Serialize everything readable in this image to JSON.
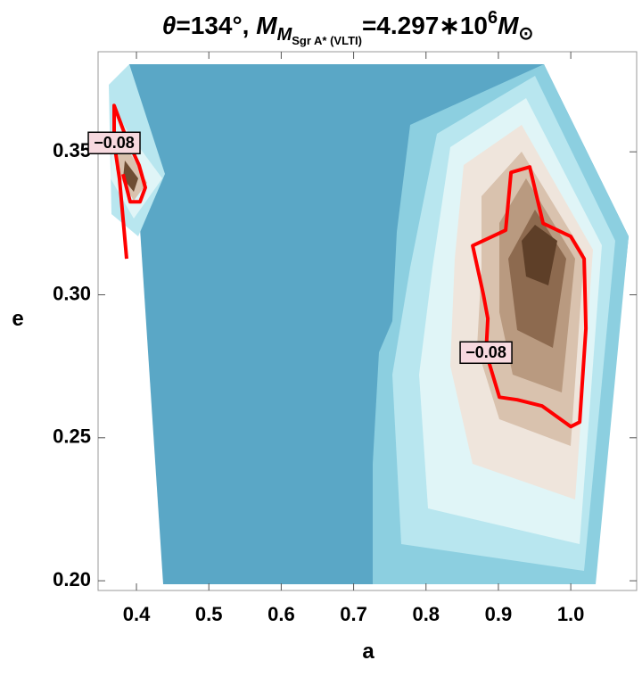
{
  "chart_data": {
    "type": "contour",
    "title": {
      "theta": "θ",
      "lead": "=134°, ",
      "m": "M",
      "sub": "M",
      "subsub": "Sgr A* (VLTI)",
      "eq": "=4.297∗10",
      "exp": "6",
      "msun": "M",
      "sun": "⊙"
    },
    "x_label": "a",
    "y_label": "e",
    "xlim": [
      0.347,
      1.091
    ],
    "ylim": [
      0.1966,
      0.385
    ],
    "xticks": [
      0.4,
      0.5,
      0.6,
      0.7,
      0.8,
      0.9,
      {
        "value": 1,
        "label": "1.0"
      }
    ],
    "yticks": [
      {
        "value": 0.2,
        "label": "0.20"
      },
      0.25,
      {
        "value": 0.3,
        "label": "0.30"
      },
      0.35
    ],
    "contours": [
      {
        "level": -0.08,
        "label": "−0.08",
        "color": "#ff0000",
        "closed": false,
        "x": [
          0.3864,
          0.3766,
          0.3692,
          0.3692,
          0.384,
          0.4037,
          0.4123,
          0.4049,
          0.3914,
          0.3815
        ],
        "y": [
          0.3126,
          0.3406,
          0.3531,
          0.3662,
          0.3562,
          0.3453,
          0.3375,
          0.3325,
          0.3325,
          0.3422
        ]
      },
      {
        "level": -0.08,
        "label": "−0.08",
        "color": "#ff0000",
        "closed": true,
        "x": [
          0.9174,
          0.9433,
          0.9618,
          1.0,
          1.0185,
          1.0209,
          1.0123,
          1.0,
          0.9606,
          0.9261,
          0.9014,
          0.8829,
          0.8854,
          0.8792,
          0.8645,
          0.91
        ],
        "y": [
          0.3428,
          0.3447,
          0.325,
          0.3204,
          0.3126,
          0.2882,
          0.2555,
          0.2539,
          0.2611,
          0.2633,
          0.2642,
          0.2798,
          0.2917,
          0.3001,
          0.3172,
          0.3226
        ]
      }
    ]
  }
}
